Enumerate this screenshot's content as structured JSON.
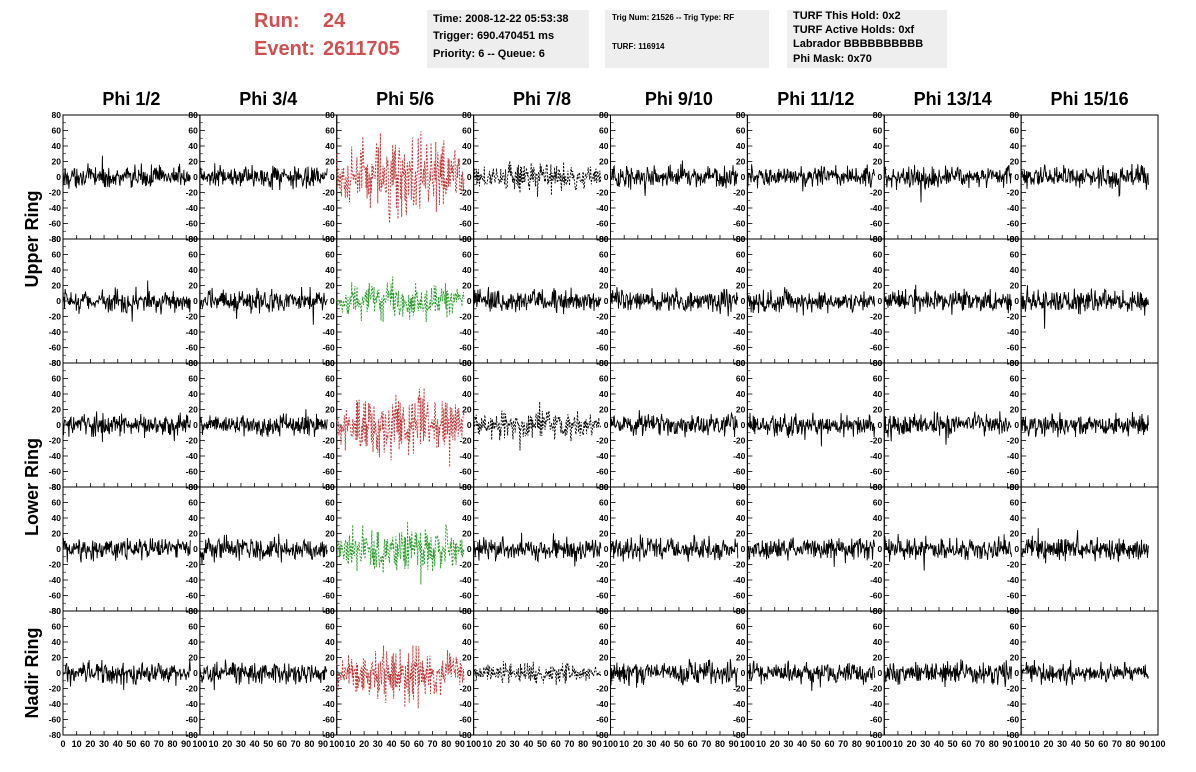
{
  "header": {
    "run_label": "Run:",
    "run_value": "24",
    "event_label": "Event:",
    "event_value": "2611705",
    "time_line": "Time: 2008-12-22 05:53:38",
    "trigger_line": "Trigger: 690.470451 ms",
    "priority_line": "Priority: 6 -- Queue: 6",
    "trig_line": "Trig Num: 21526 -- Trig Type: RF",
    "turf_line": "TURF: 116914",
    "turf_hold_line": "TURF This Hold: 0x2",
    "turf_active_line": "TURF Active Holds: 0xf",
    "labrador_line": "Labrador BBBBBBBBBB",
    "phimask_line": "Phi Mask: 0x70"
  },
  "colors": {
    "accent": "#d05050",
    "red": "#c03030",
    "green": "#229922",
    "black": "#000000"
  },
  "chart_data": {
    "type": "line",
    "columns": [
      "Phi 1/2",
      "Phi 3/4",
      "Phi 5/6",
      "Phi 7/8",
      "Phi 9/10",
      "Phi 11/12",
      "Phi 13/14",
      "Phi 15/16"
    ],
    "ring_labels": [
      "Upper Ring",
      "Lower Ring",
      "Nadir Ring"
    ],
    "ylim": [
      -80,
      80
    ],
    "xlim": [
      0,
      100
    ],
    "y_ticks": [
      80,
      60,
      40,
      20,
      0,
      -20,
      -40,
      -60,
      -80
    ],
    "x_ticks": [
      0,
      10,
      20,
      30,
      40,
      50,
      60,
      70,
      80,
      90,
      100
    ],
    "x_tick_labels": [
      "0",
      "10",
      "20",
      "30",
      "40",
      "50",
      "60",
      "70",
      "80",
      "90",
      "100"
    ],
    "sample_x_range": [
      0,
      93
    ],
    "samples_per_trace": 240,
    "typical_amplitude": 12,
    "highlighted_traces": [
      {
        "row": 0,
        "col": 2,
        "color": "red",
        "style": "dashed",
        "amplitude": 45
      },
      {
        "row": 1,
        "col": 2,
        "color": "green",
        "style": "dashed",
        "amplitude": 22
      },
      {
        "row": 2,
        "col": 2,
        "color": "red",
        "style": "dashed",
        "amplitude": 40
      },
      {
        "row": 3,
        "col": 2,
        "color": "green",
        "style": "dashed",
        "amplitude": 28
      },
      {
        "row": 4,
        "col": 2,
        "color": "red",
        "style": "dashed",
        "amplitude": 32
      },
      {
        "row": 0,
        "col": 3,
        "color": "black",
        "style": "dashed",
        "amplitude": 18
      },
      {
        "row": 2,
        "col": 3,
        "color": "black",
        "style": "dashed",
        "amplitude": 18
      },
      {
        "row": 4,
        "col": 3,
        "color": "black",
        "style": "dashed",
        "amplitude": 12
      }
    ]
  }
}
